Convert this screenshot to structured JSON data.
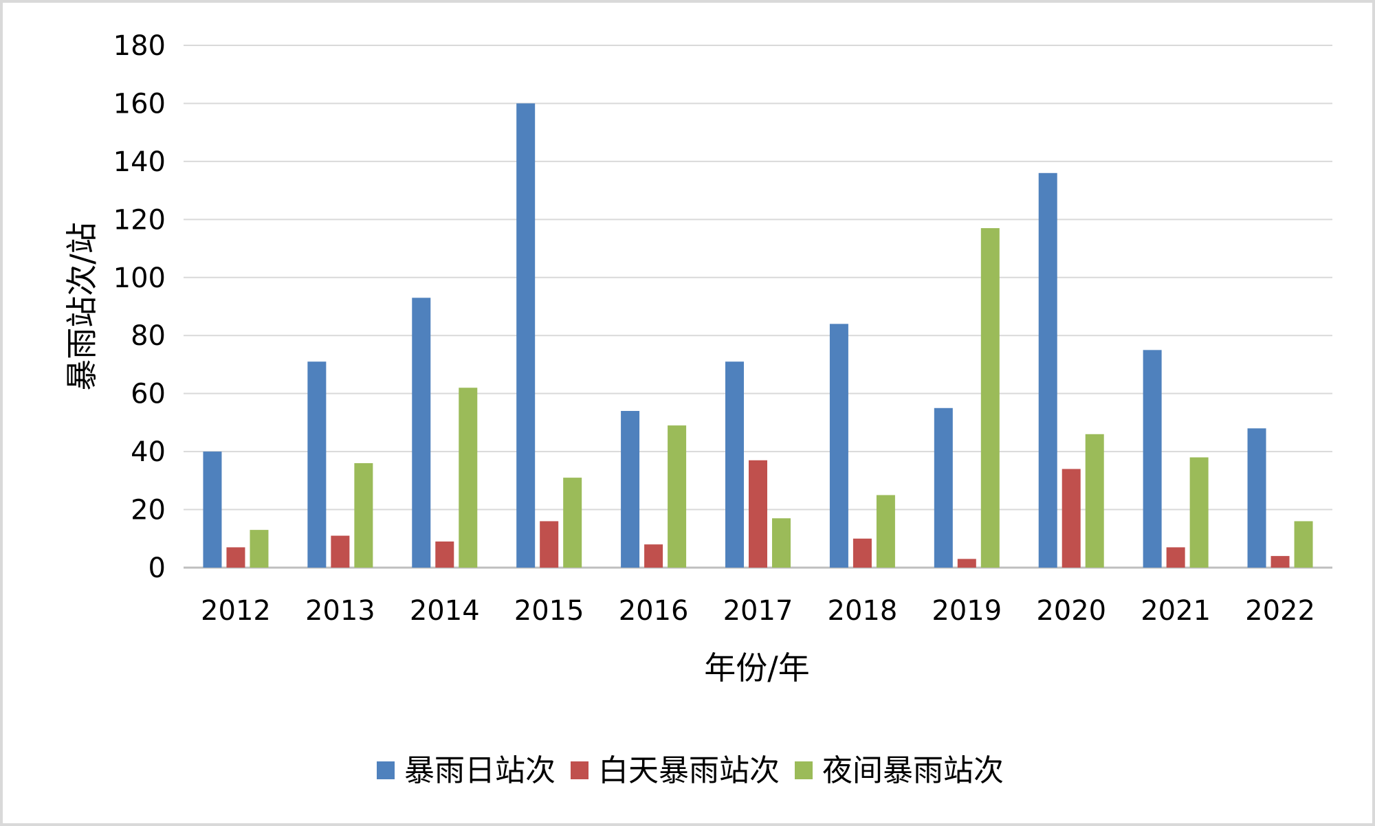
{
  "chart_data": {
    "type": "bar",
    "title": "",
    "xlabel": "年份/年",
    "ylabel": "暴雨站次/站",
    "ylim": [
      0,
      180
    ],
    "yticks": [
      0,
      20,
      40,
      60,
      80,
      100,
      120,
      140,
      160,
      180
    ],
    "grid": true,
    "legend_position": "bottom",
    "categories": [
      "2012",
      "2013",
      "2014",
      "2015",
      "2016",
      "2017",
      "2018",
      "2019",
      "2020",
      "2021",
      "2022"
    ],
    "series": [
      {
        "name": "暴雨日站次",
        "color": "#4f81bd",
        "values": [
          40,
          71,
          93,
          160,
          54,
          71,
          84,
          55,
          136,
          75,
          48
        ]
      },
      {
        "name": "白天暴雨站次",
        "color": "#c0504d",
        "values": [
          7,
          11,
          9,
          16,
          8,
          37,
          10,
          3,
          34,
          7,
          4
        ]
      },
      {
        "name": "夜间暴雨站次",
        "color": "#9bbb59",
        "values": [
          13,
          36,
          62,
          31,
          49,
          17,
          25,
          117,
          46,
          38,
          16
        ]
      }
    ]
  }
}
